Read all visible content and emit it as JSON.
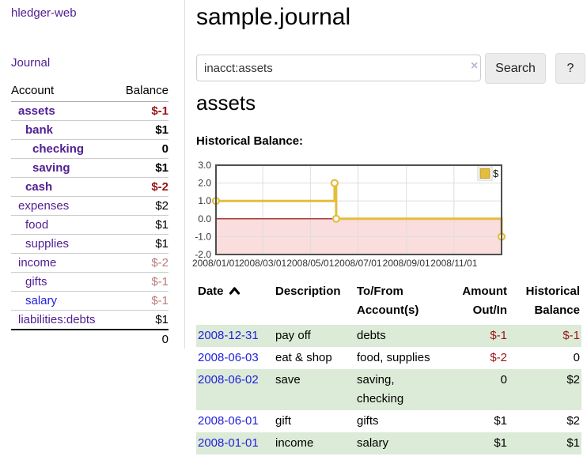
{
  "sidebar": {
    "app_title": "hledger-web",
    "journal_link": "Journal",
    "headers": {
      "account": "Account",
      "balance": "Balance"
    },
    "accounts": [
      {
        "name": "assets",
        "balance": "$-1",
        "indent": 0,
        "bold": true,
        "balance_style": "neg-strong",
        "link_style": "purple"
      },
      {
        "name": "bank",
        "balance": "$1",
        "indent": 1,
        "bold": true,
        "balance_style": "pos",
        "link_style": "purple"
      },
      {
        "name": "checking",
        "balance": "0",
        "indent": 2,
        "bold": true,
        "balance_style": "pos",
        "link_style": "purple"
      },
      {
        "name": "saving",
        "balance": "$1",
        "indent": 2,
        "bold": true,
        "balance_style": "pos",
        "link_style": "purple"
      },
      {
        "name": "cash",
        "balance": "$-2",
        "indent": 1,
        "bold": true,
        "balance_style": "neg-strong",
        "link_style": "purple"
      },
      {
        "name": "expenses",
        "balance": "$2",
        "indent": 0,
        "bold": false,
        "balance_style": "pos",
        "link_style": "purple"
      },
      {
        "name": "food",
        "balance": "$1",
        "indent": 1,
        "bold": false,
        "balance_style": "pos",
        "link_style": "purple"
      },
      {
        "name": "supplies",
        "balance": "$1",
        "indent": 1,
        "bold": false,
        "balance_style": "pos",
        "link_style": "purple"
      },
      {
        "name": "income",
        "balance": "$-2",
        "indent": 0,
        "bold": false,
        "balance_style": "neg-soft",
        "link_style": "purple"
      },
      {
        "name": "gifts",
        "balance": "$-1",
        "indent": 1,
        "bold": false,
        "balance_style": "neg-soft",
        "link_style": "purple"
      },
      {
        "name": "salary",
        "balance": "$-1",
        "indent": 1,
        "bold": false,
        "balance_style": "neg-soft",
        "link_style": "blue"
      },
      {
        "name": "liabilities:debts",
        "balance": "$1",
        "indent": 0,
        "bold": false,
        "balance_style": "pos",
        "link_style": "purple"
      }
    ],
    "total": "0"
  },
  "main": {
    "title": "sample.journal"
  },
  "search": {
    "value": "inacct:assets",
    "clear_icon": "×",
    "button_label": "Search",
    "help_label": "?"
  },
  "account": {
    "heading": "assets",
    "chart_label": "Historical Balance:"
  },
  "chart_data": {
    "type": "line",
    "step": true,
    "title": "Historical Balance",
    "ylim": [
      -2,
      3
    ],
    "grid": true,
    "legend_position": "top-right",
    "negative_region_color": "#fadddd",
    "zero_line_color": "#990000",
    "yticks": [
      {
        "label": "3.0",
        "v": 3
      },
      {
        "label": "2.0",
        "v": 2
      },
      {
        "label": "1.0",
        "v": 1
      },
      {
        "label": "0.0",
        "v": 0
      },
      {
        "label": "-1.0",
        "v": -1
      },
      {
        "label": "-2.0",
        "v": -2
      }
    ],
    "xticks": [
      {
        "label": "2008/01/01",
        "f": 0
      },
      {
        "label": "2008/03/01",
        "f": 0.1639
      },
      {
        "label": "2008/05/01",
        "f": 0.3306
      },
      {
        "label": "2008/07/01",
        "f": 0.4973
      },
      {
        "label": "2008/09/01",
        "f": 0.6667
      },
      {
        "label": "2008/11/01",
        "f": 0.8333
      }
    ],
    "series": [
      {
        "name": "$",
        "color": "#e4bd3f",
        "points": [
          {
            "date": "2008-01-01",
            "f": 0,
            "value": 1
          },
          {
            "date": "2008-06-01",
            "f": 0.4153,
            "value": 2
          },
          {
            "date": "2008-06-03",
            "f": 0.4208,
            "value": 0
          },
          {
            "date": "2008-12-31",
            "f": 1,
            "value": -1
          }
        ]
      }
    ]
  },
  "register": {
    "headers": [
      {
        "label": "Date",
        "sorted": "asc"
      },
      {
        "label": "Description"
      },
      {
        "label": "To/From Account(s)"
      },
      {
        "label": "Amount Out/In"
      },
      {
        "label": "Historical Balance"
      }
    ],
    "rows": [
      {
        "date": "2008-12-31",
        "description": "pay off",
        "accounts": "debts",
        "amount": "$-1",
        "balance": "$-1",
        "amount_negative": true,
        "balance_negative": true
      },
      {
        "date": "2008-06-03",
        "description": "eat & shop",
        "accounts": "food, supplies",
        "amount": "$-2",
        "balance": "0",
        "amount_negative": true,
        "balance_negative": false
      },
      {
        "date": "2008-06-02",
        "description": "save",
        "accounts": "saving, checking",
        "amount": "0",
        "balance": "$2",
        "amount_negative": false,
        "balance_negative": false
      },
      {
        "date": "2008-06-01",
        "description": "gift",
        "accounts": "gifts",
        "amount": "$1",
        "balance": "$2",
        "amount_negative": false,
        "balance_negative": false
      },
      {
        "date": "2008-01-01",
        "description": "income",
        "accounts": "salary",
        "amount": "$1",
        "balance": "$1",
        "amount_negative": false,
        "balance_negative": false
      }
    ]
  }
}
